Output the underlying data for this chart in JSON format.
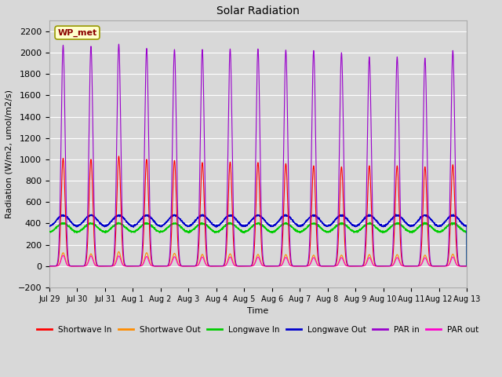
{
  "title": "Solar Radiation",
  "xlabel": "Time",
  "ylabel": "Radiation (W/m2, umol/m2/s)",
  "ylim": [
    -200,
    2300
  ],
  "yticks": [
    -200,
    0,
    200,
    400,
    600,
    800,
    1000,
    1200,
    1400,
    1600,
    1800,
    2000,
    2200
  ],
  "bg_color": "#d8d8d8",
  "fig_color": "#d8d8d8",
  "legend_entries": [
    "Shortwave In",
    "Shortwave Out",
    "Longwave In",
    "Longwave Out",
    "PAR in",
    "PAR out"
  ],
  "line_colors": [
    "#ff0000",
    "#ff8c00",
    "#00cc00",
    "#0000cc",
    "#9900cc",
    "#ff00cc"
  ],
  "annotation_text": "WP_met",
  "annotation_bg": "#ffffcc",
  "annotation_border": "#999900",
  "n_days": 15,
  "pts_per_day": 288,
  "shortwave_in_peak": [
    1010,
    1000,
    1030,
    1000,
    990,
    970,
    975,
    970,
    960,
    940,
    930,
    940,
    940,
    930,
    950
  ],
  "shortwave_out_peak": [
    125,
    115,
    135,
    125,
    120,
    110,
    115,
    110,
    108,
    103,
    103,
    108,
    108,
    103,
    112
  ],
  "longwave_in_base": 320,
  "longwave_in_peak": 400,
  "longwave_out_base": 375,
  "longwave_out_peak": 475,
  "par_in_peak": [
    2070,
    2060,
    2080,
    2040,
    2030,
    2030,
    2035,
    2035,
    2025,
    2020,
    2000,
    1960,
    1960,
    1950,
    2020
  ],
  "par_out_peak": [
    100,
    95,
    95,
    90,
    88,
    85,
    85,
    85,
    82,
    80,
    80,
    80,
    80,
    78,
    85
  ],
  "xtick_labels": [
    "Jul 29",
    "Jul 30",
    "Jul 31",
    "Aug 1",
    "Aug 2",
    "Aug 3",
    "Aug 4",
    "Aug 5",
    "Aug 6",
    "Aug 7",
    "Aug 8",
    "Aug 9",
    "Aug 10",
    "Aug 11",
    "Aug 12",
    "Aug 13"
  ]
}
